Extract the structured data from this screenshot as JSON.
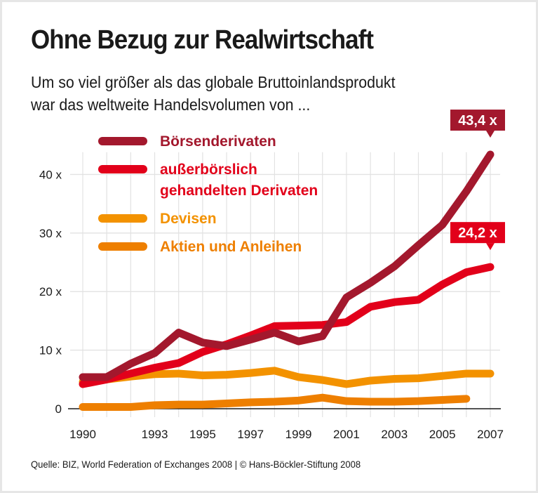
{
  "header": {
    "title": "Ohne Bezug zur Realwirtschaft",
    "subtitle_line1": "Um so viel größer als das globale Bruttoinlandsprodukt",
    "subtitle_line2": "war das weltweite Handelsvolumen von ..."
  },
  "footer": {
    "source": "Quelle: BIZ, World Federation of Exchanges 2008 | © Hans-Böckler-Stiftung 2008"
  },
  "chart_data": {
    "type": "line",
    "title": "Ohne Bezug zur Realwirtschaft",
    "subtitle": "Um so viel größer als das globale Bruttoinlandsprodukt war das weltweite Handelsvolumen von ...",
    "xlabel": "",
    "ylabel": "",
    "x": [
      1990,
      1991,
      1992,
      1993,
      1994,
      1995,
      1996,
      1997,
      1998,
      1999,
      2000,
      2001,
      2002,
      2003,
      2004,
      2005,
      2006,
      2007
    ],
    "x_tick_labels": [
      "1990",
      "1993",
      "1995",
      "1997",
      "1999",
      "2001",
      "2003",
      "2005",
      "2007"
    ],
    "y_ticks": [
      0,
      10,
      20,
      30,
      40
    ],
    "y_tick_labels": [
      "0",
      "10 x",
      "20 x",
      "30 x",
      "40 x"
    ],
    "ylim": [
      0,
      45
    ],
    "xlim": [
      1990,
      2007
    ],
    "grid": true,
    "legend_position": "top-left",
    "series": [
      {
        "name": "Börsenderivaten",
        "color": "#a3182d",
        "values": [
          5.4,
          5.4,
          7.7,
          9.5,
          13.0,
          11.3,
          10.7,
          11.8,
          13.0,
          11.5,
          12.4,
          19.0,
          21.5,
          24.3,
          27.9,
          31.4,
          37.1,
          43.4
        ]
      },
      {
        "name": "außerbörslich gehandelten Derivaten",
        "name_line1": "außerbörslich",
        "name_line2": "gehandelten Derivaten",
        "color": "#e2001a",
        "values": [
          4.2,
          5.0,
          6.0,
          7.0,
          7.8,
          9.7,
          11.0,
          12.5,
          14.1,
          14.2,
          14.3,
          14.8,
          17.4,
          18.2,
          18.6,
          21.2,
          23.3,
          24.2
        ]
      },
      {
        "name": "Devisen",
        "color": "#f39200",
        "values": [
          4.6,
          5.0,
          5.5,
          5.9,
          6.0,
          5.7,
          5.8,
          6.1,
          6.5,
          5.4,
          4.9,
          4.2,
          4.8,
          5.1,
          5.2,
          5.6,
          6.0,
          6.0
        ]
      },
      {
        "name": "Aktien und Anleihen",
        "color": "#ee7f00",
        "values": [
          0.3,
          0.3,
          0.3,
          0.6,
          0.7,
          0.7,
          0.9,
          1.1,
          1.2,
          1.4,
          1.9,
          1.3,
          1.2,
          1.2,
          1.3,
          1.5,
          1.7,
          null
        ]
      }
    ],
    "annotations": [
      {
        "text": "43,4 x",
        "x": 2007,
        "y": 43.4,
        "series": "Börsenderivaten",
        "color": "#a3182d"
      },
      {
        "text": "24,2 x",
        "x": 2007,
        "y": 24.2,
        "series": "außerbörslich gehandelten Derivaten",
        "color": "#e2001a"
      }
    ]
  }
}
